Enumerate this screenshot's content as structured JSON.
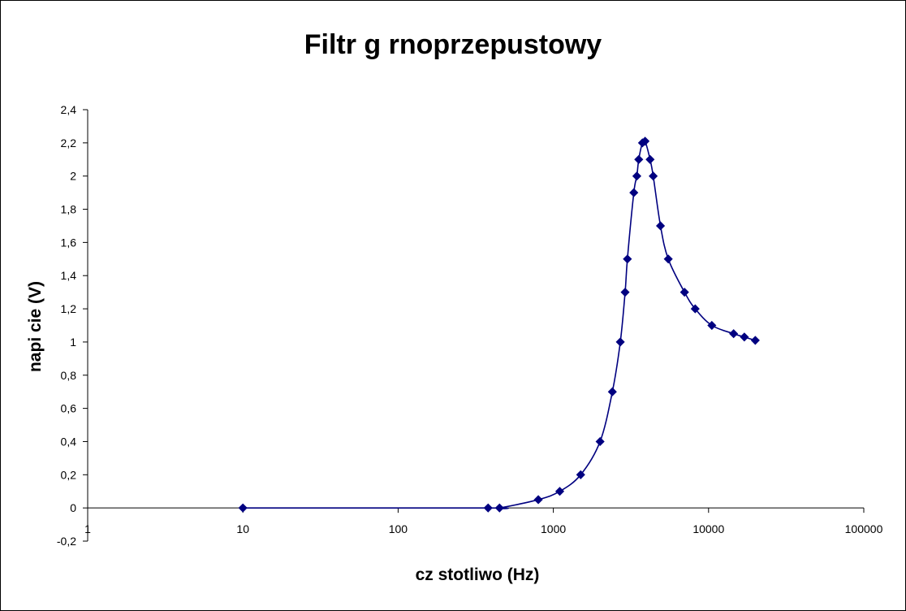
{
  "chart_data": {
    "type": "scatter",
    "title": "Filtr g   rnoprzepustowy",
    "xlabel": "cz  stotliwo     (Hz)",
    "ylabel": "napi  cie (V)",
    "x_scale": "log",
    "xlim": [
      1,
      100000
    ],
    "ylim": [
      -0.2,
      2.4
    ],
    "x_tick_labels": [
      "1",
      "10",
      "100",
      "1000",
      "10000",
      "100000"
    ],
    "y_tick_labels": [
      "-0,2",
      "0",
      "0,2",
      "0,4",
      "0,6",
      "0,8",
      "1",
      "1,2",
      "1,4",
      "1,6",
      "1,8",
      "2",
      "2,2",
      "2,4"
    ],
    "grid": false,
    "legend": "none",
    "line_smoothed": true,
    "marker": "diamond",
    "series_color": "#000080",
    "series": [
      {
        "points": [
          [
            10,
            0
          ],
          [
            380,
            0
          ],
          [
            450,
            0
          ],
          [
            800,
            0.05
          ],
          [
            1100,
            0.1
          ],
          [
            1500,
            0.2
          ],
          [
            2000,
            0.4
          ],
          [
            2400,
            0.7
          ],
          [
            2700,
            1.0
          ],
          [
            2900,
            1.3
          ],
          [
            3000,
            1.5
          ],
          [
            3300,
            1.9
          ],
          [
            3450,
            2.0
          ],
          [
            3550,
            2.1
          ],
          [
            3750,
            2.2
          ],
          [
            3900,
            2.21
          ],
          [
            4200,
            2.1
          ],
          [
            4400,
            2.0
          ],
          [
            4900,
            1.7
          ],
          [
            5500,
            1.5
          ],
          [
            7000,
            1.3
          ],
          [
            8200,
            1.2
          ],
          [
            10500,
            1.1
          ],
          [
            14500,
            1.05
          ],
          [
            17000,
            1.03
          ],
          [
            20000,
            1.01
          ]
        ]
      }
    ]
  }
}
